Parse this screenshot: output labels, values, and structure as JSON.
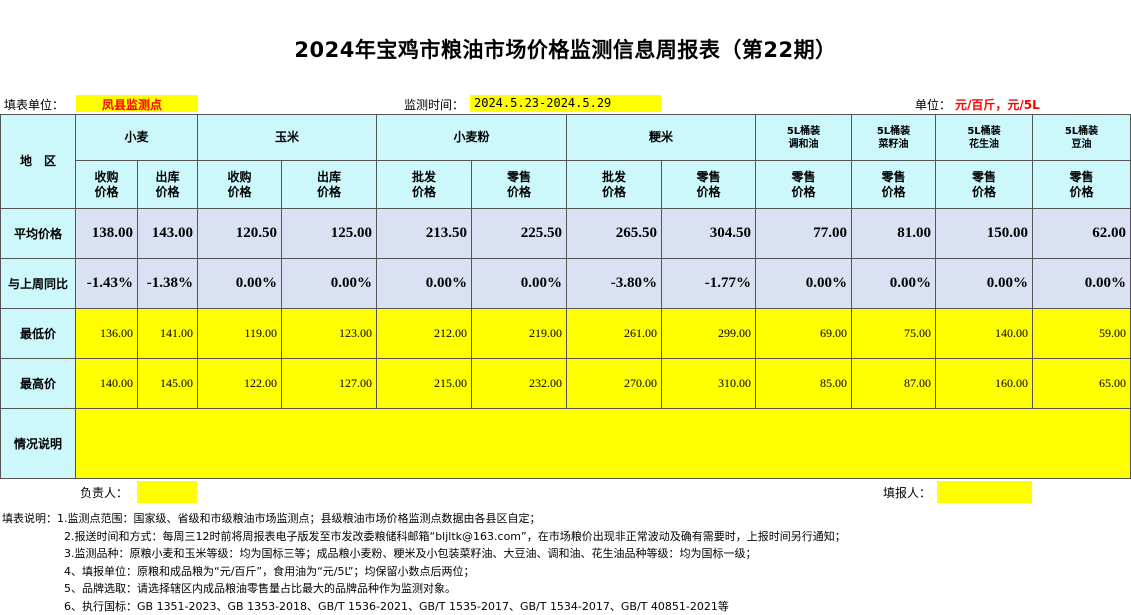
{
  "title": "2024年宝鸡市粮油市场价格监测信息周报表（第22期）",
  "info": {
    "unit_label": "填表单位：",
    "unit_value": "凤县监测点",
    "period_label": "监测时间：",
    "period_value": "2024.5.23-2024.5.29",
    "price_unit_label": "单位：",
    "price_unit_value": "元/百斤，元/5L"
  },
  "headers": {
    "region": "地　区",
    "groups": [
      "小麦",
      "玉米",
      "小麦粉",
      "粳米",
      "5L桶装\n调和油",
      "5L桶装\n菜籽油",
      "5L桶装\n花生油",
      "5L桶装\n豆油"
    ],
    "sub": [
      "收购\n价格",
      "出库\n价格",
      "收购\n价格",
      "出库\n价格",
      "批发\n价格",
      "零售\n价格",
      "批发\n价格",
      "零售\n价格",
      "零售\n价格",
      "零售\n价格",
      "零售\n价格",
      "零售\n价格"
    ]
  },
  "rows": {
    "avg_label": "平均价格",
    "avg": [
      "138.00",
      "143.00",
      "120.50",
      "125.00",
      "213.50",
      "225.50",
      "265.50",
      "304.50",
      "77.00",
      "81.00",
      "150.00",
      "62.00"
    ],
    "wow_label": "与上周同比",
    "wow": [
      "-1.43%",
      "-1.38%",
      "0.00%",
      "0.00%",
      "0.00%",
      "0.00%",
      "-3.80%",
      "-1.77%",
      "0.00%",
      "0.00%",
      "0.00%",
      "0.00%"
    ],
    "min_label": "最低价",
    "min": [
      "136.00",
      "141.00",
      "119.00",
      "123.00",
      "212.00",
      "219.00",
      "261.00",
      "299.00",
      "69.00",
      "75.00",
      "140.00",
      "59.00"
    ],
    "max_label": "最高价",
    "max": [
      "140.00",
      "145.00",
      "122.00",
      "127.00",
      "215.00",
      "232.00",
      "270.00",
      "310.00",
      "85.00",
      "87.00",
      "160.00",
      "65.00"
    ],
    "notes_label": "情况说明"
  },
  "sign": {
    "responsible": "负责人：",
    "filler": "填报人："
  },
  "notes": [
    "填表说明：1.监测点范围：国家级、省级和市级粮油市场监测点；县级粮油市场价格监测点数据由各县区自定；",
    "2.报送时间和方式：每周三12时前将周报表电子版发至市发改委粮储科邮箱“bljltk@163.com”，在市场粮价出现非正常波动及确有需要时，上报时间另行通知；",
    "3.监测品种：原粮小麦和玉米等级：均为国标三等；成品粮小麦粉、粳米及小包装菜籽油、大豆油、调和油、花生油品种等级：均为国标一级；",
    "4、填报单位：原粮和成品粮为“元/百斤”，食用油为“元/5L”；均保留小数点后两位；",
    "5、品牌选取：请选择辖区内成品粮油零售量占比最大的品牌品种作为监测对象。",
    "6、执行国标：GB 1351-2023、GB 1353-2018、GB/T 1536-2021、GB/T 1535-2017、GB/T 1534-2017、GB/T 40851-2021等"
  ],
  "colors": {
    "header_bg": "#ccf7fb",
    "avg_bg": "#d9e1f2",
    "highlight": "#ffff00",
    "accent_text": "#ff0000"
  }
}
